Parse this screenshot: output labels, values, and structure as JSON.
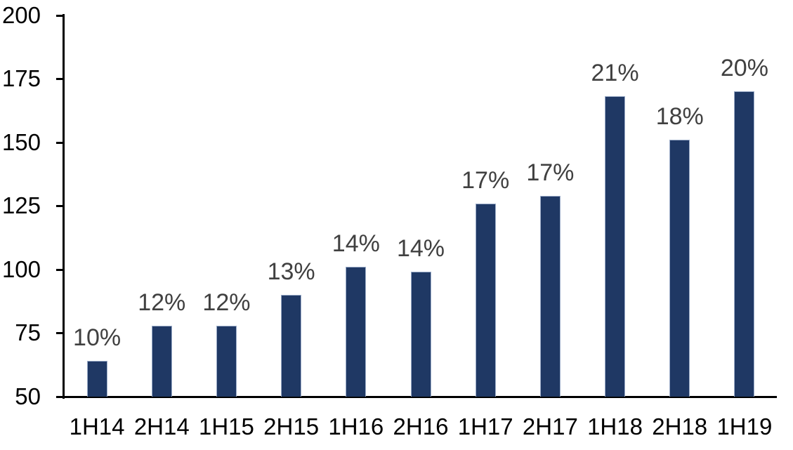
{
  "chart_data": {
    "type": "bar",
    "title": "",
    "xlabel": "",
    "ylabel": "",
    "categories": [
      "1H14",
      "2H14",
      "1H15",
      "2H15",
      "1H16",
      "2H16",
      "1H17",
      "2H17",
      "1H18",
      "2H18",
      "1H19"
    ],
    "values": [
      64,
      78,
      78,
      90,
      101,
      99,
      126,
      129,
      168,
      151,
      170
    ],
    "data_labels": [
      "10%",
      "12%",
      "12%",
      "13%",
      "14%",
      "14%",
      "17%",
      "17%",
      "21%",
      "18%",
      "20%"
    ],
    "ylim": [
      50,
      200
    ],
    "yticks": [
      50,
      75,
      100,
      125,
      150,
      175,
      200
    ],
    "grid": false,
    "legend": false,
    "colors": {
      "bar_fill": "#1F3864",
      "bar_border": "#9BACC8",
      "data_label": "#404040",
      "axis": "#000000",
      "axis_text": "#000000",
      "background": "#FFFFFF"
    }
  }
}
